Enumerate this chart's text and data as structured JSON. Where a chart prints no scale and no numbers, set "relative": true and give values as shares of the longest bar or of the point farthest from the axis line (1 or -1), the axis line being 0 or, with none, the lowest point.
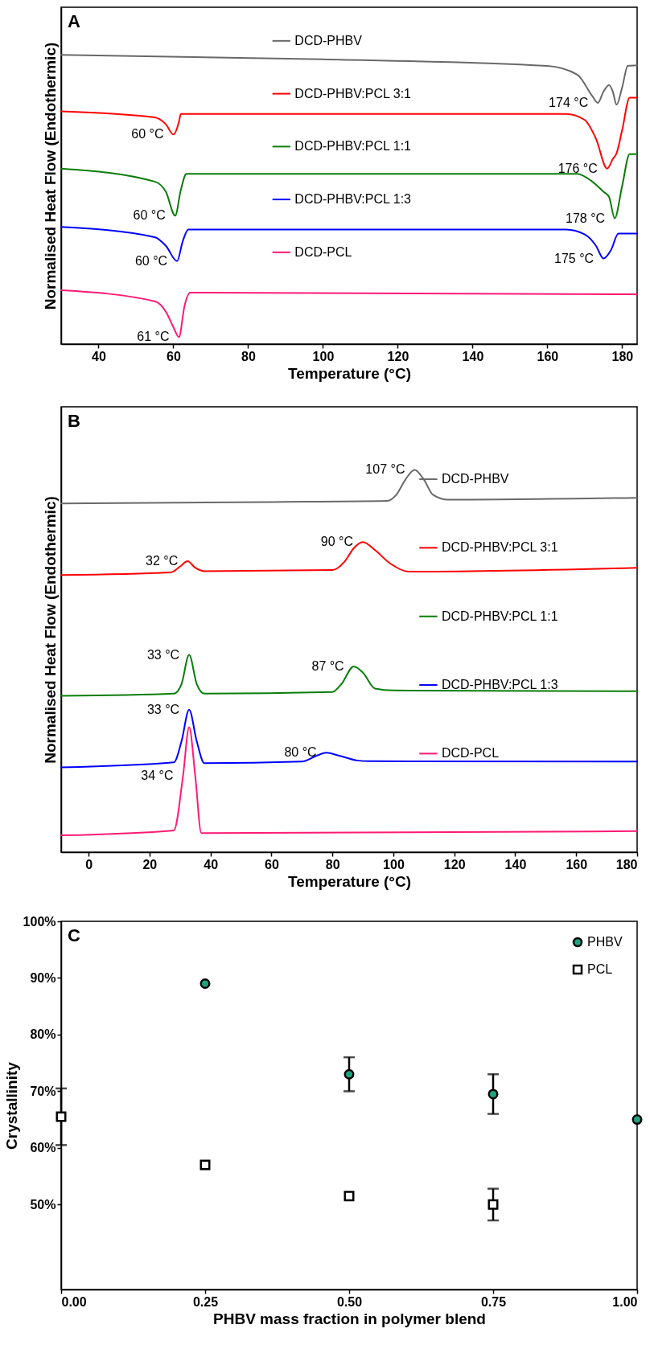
{
  "chart_data": [
    {
      "type": "line",
      "relative": true,
      "xlabel": "Temperature (°C)",
      "ylabel": "Normalised Heat Flow (Endothermic)",
      "xlim": [
        30,
        184
      ],
      "xticks": [
        40,
        60,
        80,
        100,
        120,
        140,
        160,
        180
      ],
      "legend": "top",
      "annotations": [
        "A",
        {
          "text": "174 °C",
          "x": 173.5,
          "y": 0.834
        },
        {
          "text": "60 °C",
          "x": 60,
          "y": 0.725
        },
        {
          "text": "176 °C",
          "x": 176,
          "y": 0.607
        },
        {
          "text": "60 °C",
          "x": 60.5,
          "y": 0.444
        },
        {
          "text": "178 °C",
          "x": 178,
          "y": 0.435
        },
        {
          "text": "60 °C",
          "x": 61,
          "y": 0.287
        },
        {
          "text": "175 °C",
          "x": 175,
          "y": 0.296
        },
        {
          "text": "61 °C",
          "x": 61.5,
          "y": 0.024
        }
      ],
      "series": [
        {
          "name": "DCD-PHBV",
          "color": "#696969",
          "x": [
            30,
            100,
            160,
            168,
            172,
            173.5,
            175,
            176.5,
            177.5,
            178.5,
            180,
            181.5,
            184
          ],
          "values": [
            1.0,
            0.985,
            0.962,
            0.932,
            0.858,
            0.834,
            0.873,
            0.896,
            0.873,
            0.828,
            0.888,
            0.962,
            0.964
          ]
        },
        {
          "name": "DCD-PHBV:PCL 3:1",
          "color": "#ff0000",
          "x": [
            30,
            55,
            58,
            60,
            61.5,
            62,
            165,
            170,
            173,
            176,
            177.5,
            178.5,
            180,
            182,
            184
          ],
          "values": [
            0.805,
            0.784,
            0.76,
            0.725,
            0.769,
            0.796,
            0.796,
            0.775,
            0.71,
            0.607,
            0.64,
            0.66,
            0.74,
            0.852,
            0.852
          ]
        },
        {
          "name": "DCD-PHBV:PCL 1:1",
          "color": "#0a7d0a",
          "x": [
            30,
            55,
            58,
            60.5,
            62,
            63.5,
            168,
            172,
            175,
            176.5,
            178,
            180,
            182,
            184
          ],
          "values": [
            0.607,
            0.562,
            0.527,
            0.444,
            0.533,
            0.589,
            0.589,
            0.562,
            0.527,
            0.509,
            0.435,
            0.547,
            0.657,
            0.657
          ]
        },
        {
          "name": "DCD-PHBV:PCL 1:3",
          "color": "#0000ff",
          "x": [
            30,
            55,
            58,
            61,
            62.5,
            64,
            165,
            170,
            173,
            175,
            177,
            179,
            184
          ],
          "values": [
            0.405,
            0.37,
            0.34,
            0.287,
            0.355,
            0.396,
            0.396,
            0.379,
            0.34,
            0.296,
            0.325,
            0.382,
            0.382
          ]
        },
        {
          "name": "DCD-PCL",
          "color": "#ff1a75",
          "x": [
            30,
            55,
            58,
            60,
            61.5,
            63,
            64.5,
            184
          ],
          "values": [
            0.186,
            0.148,
            0.112,
            0.059,
            0.024,
            0.133,
            0.178,
            0.172
          ]
        }
      ]
    },
    {
      "type": "line",
      "relative": true,
      "xlabel": "Temperature (°C)",
      "ylabel": "Normalised Heat Flow (Endothermic)",
      "xlim": [
        -9,
        180
      ],
      "xticks": [
        0,
        20,
        40,
        60,
        80,
        100,
        120,
        140,
        160,
        180
      ],
      "legend": "right",
      "annotations": [
        "B",
        {
          "text": "107 °C",
          "x": 107,
          "y": 1.0
        },
        {
          "text": "32 °C",
          "x": 32.5,
          "y": 0.761
        },
        {
          "text": "90 °C",
          "x": 90,
          "y": 0.811
        },
        {
          "text": "33 °C",
          "x": 33,
          "y": 0.516
        },
        {
          "text": "87 °C",
          "x": 87,
          "y": 0.486
        },
        {
          "text": "33 °C",
          "x": 33,
          "y": 0.373
        },
        {
          "text": "80 °C",
          "x": 78,
          "y": 0.26
        },
        {
          "text": "34 °C",
          "x": 31,
          "y": 0.2
        }
      ],
      "series": [
        {
          "name": "DCD-PHBV",
          "color": "#696969",
          "x": [
            -9,
            60,
            98,
            101,
            104,
            107,
            110,
            113,
            118,
            180
          ],
          "values": [
            0.912,
            0.916,
            0.919,
            0.935,
            0.975,
            1.0,
            0.975,
            0.935,
            0.922,
            0.927
          ]
        },
        {
          "name": "DCD-PHBV:PCL 3:1",
          "color": "#ff0000",
          "x": [
            -9,
            27,
            30,
            32.5,
            35,
            38,
            80,
            84,
            87,
            90,
            94,
            99,
            105,
            180
          ],
          "values": [
            0.725,
            0.732,
            0.747,
            0.761,
            0.744,
            0.735,
            0.738,
            0.76,
            0.795,
            0.811,
            0.79,
            0.755,
            0.734,
            0.744
          ]
        },
        {
          "name": "DCD-PHBV:PCL 1:1",
          "color": "#0a7d0a",
          "x": [
            -9,
            28,
            30.5,
            33,
            35.5,
            38,
            80,
            83,
            87,
            90,
            94,
            100,
            180
          ],
          "values": [
            0.409,
            0.415,
            0.44,
            0.516,
            0.44,
            0.415,
            0.419,
            0.44,
            0.486,
            0.47,
            0.428,
            0.423,
            0.421
          ]
        },
        {
          "name": "DCD-PHBV:PCL 1:3",
          "color": "#0000ff",
          "x": [
            -9,
            28,
            30.5,
            33,
            35.5,
            38,
            70,
            75,
            78,
            82,
            88,
            92,
            180
          ],
          "values": [
            0.222,
            0.235,
            0.29,
            0.373,
            0.29,
            0.233,
            0.237,
            0.253,
            0.26,
            0.253,
            0.24,
            0.238,
            0.237
          ]
        },
        {
          "name": "DCD-PCL",
          "color": "#ff1a75",
          "x": [
            -9,
            28,
            31,
            33,
            35,
            37,
            180
          ],
          "values": [
            0.044,
            0.057,
            0.2,
            0.327,
            0.2,
            0.05,
            0.055
          ]
        }
      ]
    },
    {
      "type": "scatter",
      "xlabel": "PHBV mass fraction in polymer blend",
      "ylabel": "Crystallinity",
      "xlim": [
        0,
        1
      ],
      "xticks": [
        {
          "value": 0,
          "label": "0.00"
        },
        {
          "value": 0.25,
          "label": "0.25"
        },
        {
          "value": 0.5,
          "label": "0.50"
        },
        {
          "value": 0.75,
          "label": "0.75"
        },
        {
          "value": 1,
          "label": "1.00"
        }
      ],
      "ylim": [
        35,
        100
      ],
      "yticks": [
        {
          "value": 50,
          "label": "50%"
        },
        {
          "value": 60,
          "label": "60%"
        },
        {
          "value": 70,
          "label": "70%"
        },
        {
          "value": 80,
          "label": "80%"
        },
        {
          "value": 90,
          "label": "90%"
        },
        {
          "value": 100,
          "label": "100%"
        }
      ],
      "legend": "top right",
      "annotations": [
        "C"
      ],
      "series": [
        {
          "name": "PHBV",
          "color": "#1fa37f",
          "marker": "circle",
          "x": [
            0.25,
            0.5,
            0.75,
            1
          ],
          "values": [
            89,
            73,
            69.5,
            65
          ],
          "errors": [
            null,
            3,
            3.5,
            null
          ]
        },
        {
          "name": "PCL",
          "color": "#000000",
          "marker": "square",
          "x": [
            0,
            0.25,
            0.5,
            0.75
          ],
          "values": [
            65.5,
            57,
            51.5,
            50
          ],
          "errors": [
            5,
            null,
            null,
            2.8
          ]
        }
      ]
    }
  ]
}
